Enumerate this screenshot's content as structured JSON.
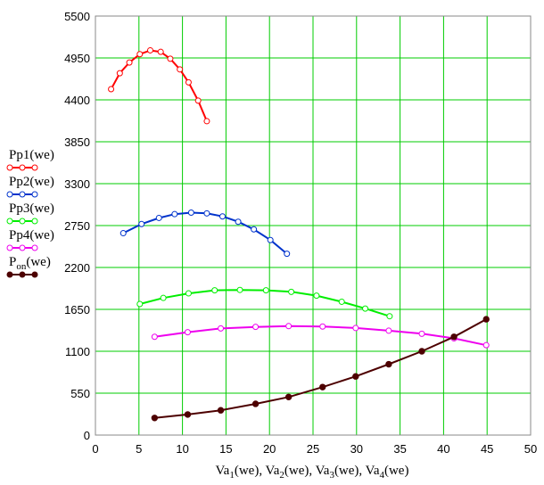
{
  "chart_data": {
    "type": "line",
    "title": "",
    "xlim": [
      0,
      50
    ],
    "ylim": [
      0,
      5500
    ],
    "x_ticks": [
      0,
      5,
      10,
      15,
      20,
      25,
      30,
      35,
      40,
      45,
      50
    ],
    "y_ticks": [
      0,
      550,
      1100,
      1650,
      2200,
      2750,
      3300,
      3850,
      4400,
      4950,
      5500
    ],
    "grid": true,
    "grid_color": "#00cc00",
    "legend_position": "left",
    "xlabel_parts": [
      {
        "t": "Va",
        "s": "1",
        "r": "(we)"
      },
      {
        "t": ", Va",
        "s": "2",
        "r": "(we)"
      },
      {
        "t": ", Va",
        "s": "3",
        "r": "(we)"
      },
      {
        "t": ", Va",
        "s": "4",
        "r": "(we)"
      }
    ],
    "series": [
      {
        "base": "Pp1",
        "sub": "",
        "arg": "(we)",
        "color": "#ff0000",
        "marker": "open-circle",
        "x": [
          1.8,
          2.8,
          3.9,
          5.1,
          6.3,
          7.5,
          8.6,
          9.7,
          10.7,
          11.8,
          12.8
        ],
        "y": [
          4540,
          4750,
          4890,
          5000,
          5050,
          5030,
          4940,
          4800,
          4630,
          4390,
          4120
        ]
      },
      {
        "base": "Pp2",
        "sub": "",
        "arg": "(we)",
        "color": "#0033cc",
        "marker": "open-circle",
        "x": [
          3.2,
          5.3,
          7.3,
          9.1,
          11.0,
          12.8,
          14.6,
          16.4,
          18.2,
          20.1,
          22.0
        ],
        "y": [
          2650,
          2770,
          2850,
          2900,
          2920,
          2910,
          2870,
          2800,
          2700,
          2560,
          2380
        ]
      },
      {
        "base": "Pp3",
        "sub": "",
        "arg": "(we)",
        "color": "#00ee00",
        "marker": "open-circle",
        "x": [
          5.1,
          7.8,
          10.7,
          13.7,
          16.6,
          19.6,
          22.5,
          25.4,
          28.3,
          31.0,
          33.8
        ],
        "y": [
          1720,
          1800,
          1860,
          1900,
          1905,
          1900,
          1880,
          1830,
          1750,
          1660,
          1560
        ]
      },
      {
        "base": "Pp4",
        "sub": "",
        "arg": "(we)",
        "color": "#ee00ee",
        "marker": "open-circle",
        "x": [
          6.8,
          10.6,
          14.4,
          18.4,
          22.2,
          26.1,
          29.9,
          33.7,
          37.5,
          41.2,
          44.9
        ],
        "y": [
          1290,
          1350,
          1400,
          1420,
          1430,
          1425,
          1405,
          1370,
          1330,
          1270,
          1180
        ]
      },
      {
        "base": "P",
        "sub": "on",
        "arg": "(we)",
        "color": "#4d0000",
        "marker": "filled-circle",
        "x": [
          6.8,
          10.6,
          14.4,
          18.4,
          22.2,
          26.1,
          29.9,
          33.7,
          37.5,
          41.2,
          44.9
        ],
        "y": [
          225,
          270,
          325,
          410,
          500,
          630,
          770,
          930,
          1100,
          1290,
          1520
        ]
      }
    ]
  }
}
